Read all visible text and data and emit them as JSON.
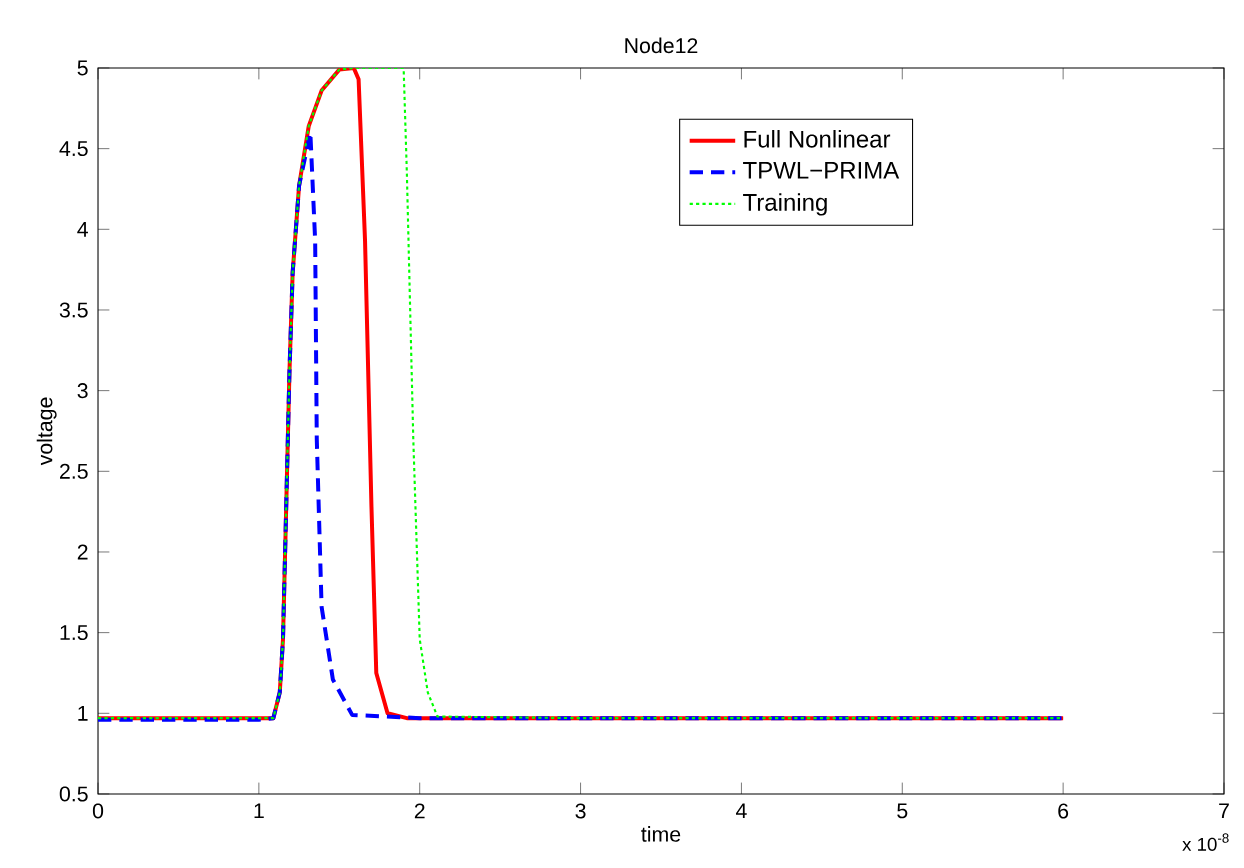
{
  "chart_data": {
    "type": "line",
    "title": "Node12",
    "xlabel": "time",
    "ylabel": "voltage",
    "annotations": [
      "x 10$^{-8}$"
    ],
    "xlim": [
      0,
      7
    ],
    "ylim": [
      0.5,
      5
    ],
    "xticks": [
      0,
      1,
      2,
      3,
      4,
      5,
      6,
      7
    ],
    "yticks": [
      0.5,
      1,
      1.5,
      2,
      2.5,
      3,
      3.5,
      4,
      4.5,
      5
    ],
    "legend": "top",
    "grid": false,
    "marker": "none",
    "series": [
      {
        "name": "Full Nonlinear",
        "color": "#ff0000",
        "line_style": "solid",
        "x": [
          0,
          1.0,
          1.09,
          1.13,
          1.15,
          1.17,
          1.19,
          1.21,
          1.25,
          1.31,
          1.39,
          1.5,
          1.59,
          1.62,
          1.66,
          1.7,
          1.73,
          1.8,
          1.92,
          3,
          6
        ],
        "values": [
          0.97,
          0.97,
          0.97,
          1.13,
          1.46,
          2.28,
          3.11,
          3.73,
          4.27,
          4.64,
          4.86,
          4.99,
          5,
          4.93,
          3.93,
          2.28,
          1.25,
          1.0,
          0.97,
          0.97,
          0.97
        ]
      },
      {
        "name": "TPWL−PRIMA",
        "color": "#0000ff",
        "line_style": "dashed",
        "x": [
          0,
          1.0,
          1.09,
          1.13,
          1.15,
          1.17,
          1.19,
          1.21,
          1.25,
          1.32,
          1.35,
          1.36,
          1.39,
          1.46,
          1.58,
          2,
          6
        ],
        "values": [
          0.96,
          0.96,
          0.97,
          1.13,
          1.46,
          2.28,
          3.11,
          3.73,
          4.27,
          4.6,
          3.93,
          2.7,
          1.66,
          1.21,
          0.99,
          0.97,
          0.97
        ]
      },
      {
        "name": "Training",
        "color": "#00ff00",
        "line_style": "dotted",
        "x": [
          0,
          1.0,
          1.09,
          1.13,
          1.15,
          1.17,
          1.19,
          1.21,
          1.25,
          1.31,
          1.39,
          1.5,
          1.59,
          1.9,
          1.92,
          1.96,
          2.0,
          2.05,
          2.11,
          3,
          6
        ],
        "values": [
          0.97,
          0.97,
          0.97,
          1.13,
          1.46,
          2.28,
          3.11,
          3.73,
          4.27,
          4.64,
          4.86,
          4.99,
          5,
          5,
          4.35,
          2.7,
          1.46,
          1.13,
          0.98,
          0.97,
          0.97
        ]
      }
    ]
  }
}
